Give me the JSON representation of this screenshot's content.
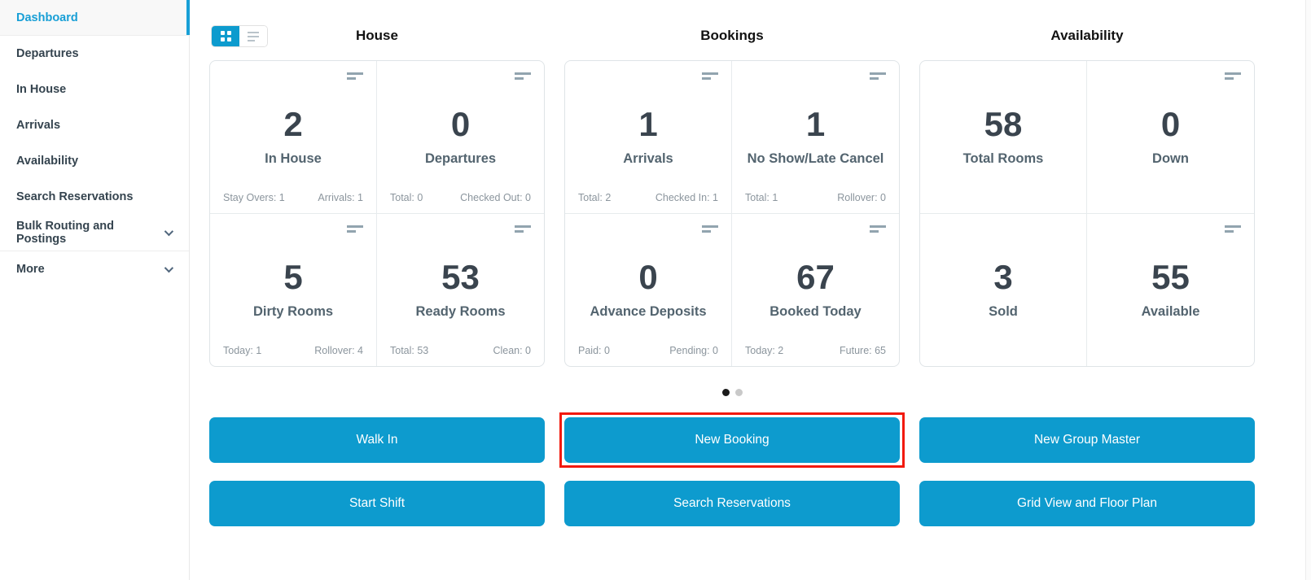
{
  "colors": {
    "accent": "#0d9bce",
    "active_link": "#189fd6",
    "annotation_red": "#f2190d",
    "dot_active": "#1b1b1b",
    "dot_inactive": "#c9c9c9"
  },
  "icons": {
    "view_grid": "grid-view-icon",
    "view_list": "list-view-icon",
    "card_menu": "card-menu-icon",
    "chevron": "chevron-down-icon"
  },
  "sidebar": {
    "items": [
      {
        "label": "Dashboard",
        "active": true
      },
      {
        "label": "Departures"
      },
      {
        "label": "In House"
      },
      {
        "label": "Arrivals"
      },
      {
        "label": "Availability"
      },
      {
        "label": "Search Reservations"
      },
      {
        "label": "Bulk Routing and Postings",
        "chevron": true
      },
      {
        "label": "More",
        "chevron": true
      }
    ]
  },
  "sections": [
    {
      "title": "House",
      "cells": [
        {
          "value": "2",
          "label": "In House",
          "stat_left": "Stay Overs: 1",
          "stat_right": "Arrivals: 1"
        },
        {
          "value": "0",
          "label": "Departures",
          "stat_left": "Total: 0",
          "stat_right": "Checked Out: 0"
        },
        {
          "value": "5",
          "label": "Dirty Rooms",
          "stat_left": "Today: 1",
          "stat_right": "Rollover: 4"
        },
        {
          "value": "53",
          "label": "Ready Rooms",
          "stat_left": "Total: 53",
          "stat_right": "Clean: 0"
        }
      ]
    },
    {
      "title": "Bookings",
      "cells": [
        {
          "value": "1",
          "label": "Arrivals",
          "stat_left": "Total: 2",
          "stat_right": "Checked In: 1"
        },
        {
          "value": "1",
          "label": "No Show/Late Cancel",
          "stat_left": "Total: 1",
          "stat_right": "Rollover: 0"
        },
        {
          "value": "0",
          "label": "Advance Deposits",
          "stat_left": "Paid: 0",
          "stat_right": "Pending: 0"
        },
        {
          "value": "67",
          "label": "Booked Today",
          "stat_left": "Today: 2",
          "stat_right": "Future: 65"
        }
      ]
    },
    {
      "title": "Availability",
      "cells": [
        {
          "value": "58",
          "label": "Total Rooms"
        },
        {
          "value": "0",
          "label": "Down"
        },
        {
          "value": "3",
          "label": "Sold"
        },
        {
          "value": "55",
          "label": "Available"
        }
      ]
    }
  ],
  "pagination": {
    "dot_count": 2,
    "active_index": 0
  },
  "actions": {
    "walk_in": "Walk In",
    "new_booking": "New Booking",
    "new_group_master": "New Group Master",
    "start_shift": "Start Shift",
    "search_reservations": "Search Reservations",
    "grid_view_floor_plan": "Grid View and Floor Plan"
  }
}
